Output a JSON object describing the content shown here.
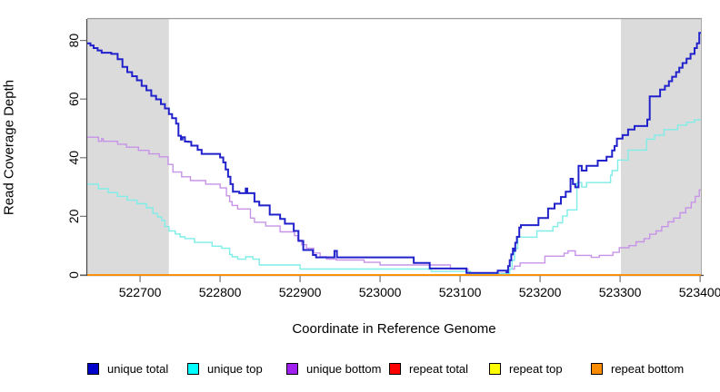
{
  "figure": {
    "background": "#ffffff"
  },
  "chart_data": {
    "type": "line",
    "subtype": "step",
    "title": "",
    "xlabel": "Coordinate in Reference Genome",
    "ylabel": "Read Coverage Depth",
    "xlim": [
      522634,
      523401
    ],
    "ylim": [
      0,
      87.3
    ],
    "x_ticks": [
      522700,
      522800,
      522900,
      523000,
      523100,
      523200,
      523300,
      523400
    ],
    "y_ticks": [
      0,
      20,
      40,
      60,
      80
    ],
    "grid": false,
    "legend_position": "bottom",
    "shade_color": "#DBDBDB",
    "shaded_regions": [
      {
        "x0": 522634,
        "x1": 522736
      },
      {
        "x0": 523301,
        "x1": 523401
      }
    ],
    "series": [
      {
        "name": "unique total",
        "line_color": "#2222CC",
        "legend_color": "#0000CD",
        "width": 2,
        "points": [
          [
            522634,
            79
          ],
          [
            522638,
            78.3
          ],
          [
            522642,
            77.4
          ],
          [
            522647,
            76.6
          ],
          [
            522652,
            75.8
          ],
          [
            522664,
            75.4
          ],
          [
            522672,
            73.6
          ],
          [
            522678,
            71
          ],
          [
            522684,
            69.2
          ],
          [
            522690,
            67.8
          ],
          [
            522696,
            66.4
          ],
          [
            522702,
            64.5
          ],
          [
            522708,
            63
          ],
          [
            522714,
            61.1
          ],
          [
            522720,
            59.9
          ],
          [
            522726,
            58.3
          ],
          [
            522731,
            56.8
          ],
          [
            522736,
            54.9
          ],
          [
            522740,
            53.5
          ],
          [
            522745,
            51.6
          ],
          [
            522748,
            47.5
          ],
          [
            522751,
            46.2
          ],
          [
            522753,
            47
          ],
          [
            522756,
            45.5
          ],
          [
            522760,
            45.4
          ],
          [
            522764,
            44.1
          ],
          [
            522772,
            42.7
          ],
          [
            522777,
            41.3
          ],
          [
            522800,
            40.1
          ],
          [
            522804,
            38.4
          ],
          [
            522807,
            36
          ],
          [
            522810,
            33.5
          ],
          [
            522813,
            31
          ],
          [
            522816,
            28.4
          ],
          [
            522824,
            27.9
          ],
          [
            522832,
            29.5
          ],
          [
            522834,
            27.9
          ],
          [
            522843,
            25
          ],
          [
            522849,
            23.7
          ],
          [
            522862,
            20.6
          ],
          [
            522875,
            19.1
          ],
          [
            522881,
            17.5
          ],
          [
            522892,
            15
          ],
          [
            522898,
            11.6
          ],
          [
            522904,
            8.5
          ],
          [
            522916,
            6.8
          ],
          [
            522920,
            6
          ],
          [
            522943,
            8.2
          ],
          [
            522946,
            6
          ],
          [
            523042,
            4.1
          ],
          [
            523062,
            2.2
          ],
          [
            523108,
            0.7
          ],
          [
            523147,
            1.5
          ],
          [
            523158,
            0.9
          ],
          [
            523160,
            3
          ],
          [
            523162,
            5
          ],
          [
            523164,
            7
          ],
          [
            523166,
            9
          ],
          [
            523167,
            8.2
          ],
          [
            523169,
            11
          ],
          [
            523171,
            13
          ],
          [
            523174,
            16.2
          ],
          [
            523176,
            17
          ],
          [
            523198,
            19.4
          ],
          [
            523210,
            22.7
          ],
          [
            523218,
            24.3
          ],
          [
            523226,
            26.6
          ],
          [
            523232,
            28.4
          ],
          [
            523238,
            32.8
          ],
          [
            523241,
            31
          ],
          [
            523244,
            29.9
          ],
          [
            523248,
            37.2
          ],
          [
            523252,
            35.6
          ],
          [
            523258,
            37.2
          ],
          [
            523272,
            39
          ],
          [
            523283,
            40.3
          ],
          [
            523290,
            42.5
          ],
          [
            523293,
            44
          ],
          [
            523296,
            46.5
          ],
          [
            523303,
            47.7
          ],
          [
            523310,
            49.6
          ],
          [
            523318,
            50.8
          ],
          [
            523334,
            53
          ],
          [
            523337,
            60.9
          ],
          [
            523350,
            63.2
          ],
          [
            523356,
            64.5
          ],
          [
            523361,
            66.1
          ],
          [
            523365,
            67.6
          ],
          [
            523370,
            69.2
          ],
          [
            523374,
            70.7
          ],
          [
            523378,
            72.3
          ],
          [
            523383,
            73.8
          ],
          [
            523388,
            75.4
          ],
          [
            523393,
            77.4
          ],
          [
            523396,
            79
          ],
          [
            523399,
            82.6
          ],
          [
            523401,
            82.6
          ]
        ]
      },
      {
        "name": "unique top",
        "line_color": "#7FEDE8",
        "legend_color": "#00FFFF",
        "width": 1.4,
        "points": [
          [
            522634,
            31
          ],
          [
            522648,
            29.4
          ],
          [
            522660,
            28.1
          ],
          [
            522672,
            26.8
          ],
          [
            522684,
            25.5
          ],
          [
            522696,
            24.3
          ],
          [
            522708,
            22.9
          ],
          [
            522716,
            21
          ],
          [
            522722,
            19.8
          ],
          [
            522727,
            18.6
          ],
          [
            522731,
            16.5
          ],
          [
            522736,
            15
          ],
          [
            522744,
            14
          ],
          [
            522750,
            13
          ],
          [
            522756,
            12.4
          ],
          [
            522768,
            11.1
          ],
          [
            522790,
            9.8
          ],
          [
            522802,
            9.1
          ],
          [
            522812,
            7
          ],
          [
            522815,
            6.2
          ],
          [
            522822,
            5.4
          ],
          [
            522832,
            6.2
          ],
          [
            522841,
            5.4
          ],
          [
            522849,
            3.4
          ],
          [
            522900,
            2
          ],
          [
            523064,
            1.2
          ],
          [
            523113,
            0.5
          ],
          [
            523160,
            0.5
          ],
          [
            523162,
            2
          ],
          [
            523165,
            5
          ],
          [
            523168,
            9
          ],
          [
            523172,
            12.9
          ],
          [
            523196,
            15
          ],
          [
            523216,
            16.5
          ],
          [
            523222,
            17.8
          ],
          [
            523228,
            20.1
          ],
          [
            523234,
            22.2
          ],
          [
            523246,
            31.5
          ],
          [
            523252,
            30
          ],
          [
            523258,
            31.5
          ],
          [
            523288,
            34
          ],
          [
            523290,
            35.6
          ],
          [
            523297,
            39.2
          ],
          [
            523310,
            42.6
          ],
          [
            523333,
            46.3
          ],
          [
            523343,
            47.7
          ],
          [
            523355,
            49.6
          ],
          [
            523372,
            51.1
          ],
          [
            523383,
            52.1
          ],
          [
            523393,
            52.9
          ],
          [
            523401,
            52.9
          ]
        ]
      },
      {
        "name": "unique bottom",
        "line_color": "#C793E8",
        "legend_color": "#A020F0",
        "width": 1.4,
        "points": [
          [
            522634,
            47
          ],
          [
            522648,
            45.6
          ],
          [
            522652,
            46.5
          ],
          [
            522654,
            45.6
          ],
          [
            522672,
            44.6
          ],
          [
            522683,
            43.6
          ],
          [
            522698,
            42.5
          ],
          [
            522711,
            41.3
          ],
          [
            522724,
            40.3
          ],
          [
            522735,
            37.7
          ],
          [
            522741,
            35.1
          ],
          [
            522752,
            33.5
          ],
          [
            522763,
            32.2
          ],
          [
            522782,
            31
          ],
          [
            522800,
            29.7
          ],
          [
            522808,
            27
          ],
          [
            522812,
            25
          ],
          [
            522815,
            23.7
          ],
          [
            522822,
            22.5
          ],
          [
            522838,
            19.4
          ],
          [
            522843,
            18
          ],
          [
            522857,
            16.7
          ],
          [
            522875,
            14.7
          ],
          [
            522893,
            13.4
          ],
          [
            522897,
            11.9
          ],
          [
            522902,
            10.3
          ],
          [
            522908,
            9.1
          ],
          [
            522917,
            7.5
          ],
          [
            522925,
            6.2
          ],
          [
            522933,
            5.4
          ],
          [
            522945,
            5.1
          ],
          [
            522980,
            4.3
          ],
          [
            523000,
            3.4
          ],
          [
            523088,
            2
          ],
          [
            523110,
            0.6
          ],
          [
            523160,
            2
          ],
          [
            523168,
            3
          ],
          [
            523175,
            4.1
          ],
          [
            523206,
            6.4
          ],
          [
            523230,
            7.4
          ],
          [
            523235,
            8.2
          ],
          [
            523244,
            6.7
          ],
          [
            523264,
            6
          ],
          [
            523274,
            6.7
          ],
          [
            523291,
            7.7
          ],
          [
            523299,
            9.3
          ],
          [
            523311,
            10
          ],
          [
            523320,
            11.3
          ],
          [
            523330,
            12.4
          ],
          [
            523337,
            13.9
          ],
          [
            523345,
            15
          ],
          [
            523352,
            16.5
          ],
          [
            523360,
            18.1
          ],
          [
            523367,
            19.4
          ],
          [
            523375,
            21.2
          ],
          [
            523382,
            22.9
          ],
          [
            523389,
            24.8
          ],
          [
            523394,
            26.8
          ],
          [
            523399,
            29
          ],
          [
            523401,
            29
          ]
        ]
      },
      {
        "name": "repeat total",
        "line_color": "#FF0000",
        "legend_color": "#FF0000",
        "width": 1.4,
        "points": [
          [
            522634,
            0
          ],
          [
            523401,
            0
          ]
        ]
      },
      {
        "name": "repeat top",
        "line_color": "#FFFF00",
        "legend_color": "#FFFF00",
        "width": 1.4,
        "points": [
          [
            522634,
            0
          ],
          [
            523401,
            0
          ]
        ]
      },
      {
        "name": "repeat bottom",
        "line_color": "#FF8C00",
        "legend_color": "#FF8C00",
        "width": 1.6,
        "points": [
          [
            522634,
            0
          ],
          [
            523401,
            0
          ]
        ]
      }
    ]
  }
}
